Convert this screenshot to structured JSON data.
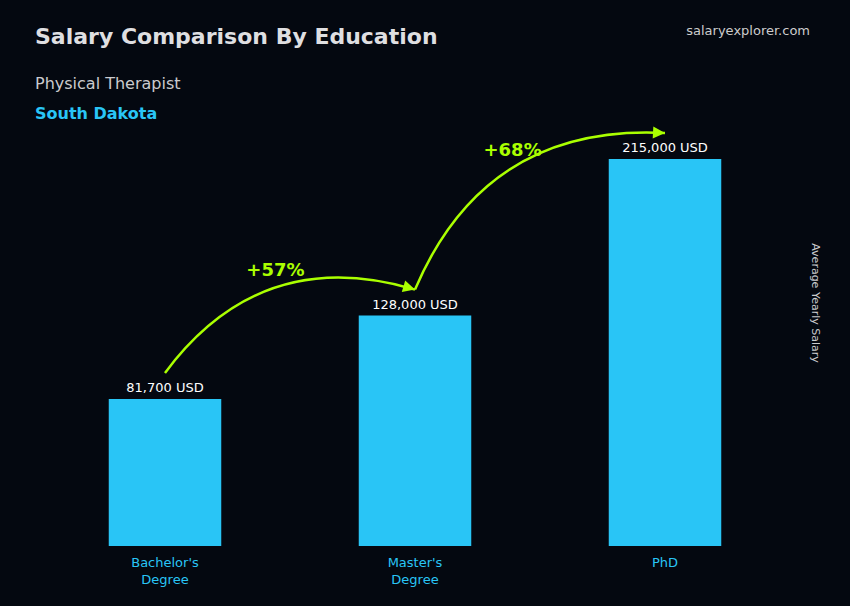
{
  "chart_data": {
    "type": "bar",
    "title": "Salary Comparison By Education",
    "subtitle": [
      "Physical Therapist",
      "South Dakota"
    ],
    "ylabel": "Average Yearly Salary",
    "categories": [
      "Bachelor's\nDegree",
      "Master's\nDegree",
      "PhD"
    ],
    "values": [
      81700,
      128000,
      215000
    ],
    "value_labels": [
      "81,700 USD",
      "128,000 USD",
      "215,000 USD"
    ],
    "data_labels": true,
    "color": "#29C5F6",
    "ylim": [
      0,
      270000
    ],
    "tick_labels": "x",
    "grid": false,
    "annotations": [
      {
        "text": "+57%",
        "from": "Bachelor's\nDegree",
        "to": "Master's\nDegree",
        "color": "#aaff00"
      },
      {
        "text": "+68%",
        "from": "Master's\nDegree",
        "to": "PhD",
        "color": "#aaff00"
      }
    ],
    "source": "salaryexplorer.com"
  }
}
